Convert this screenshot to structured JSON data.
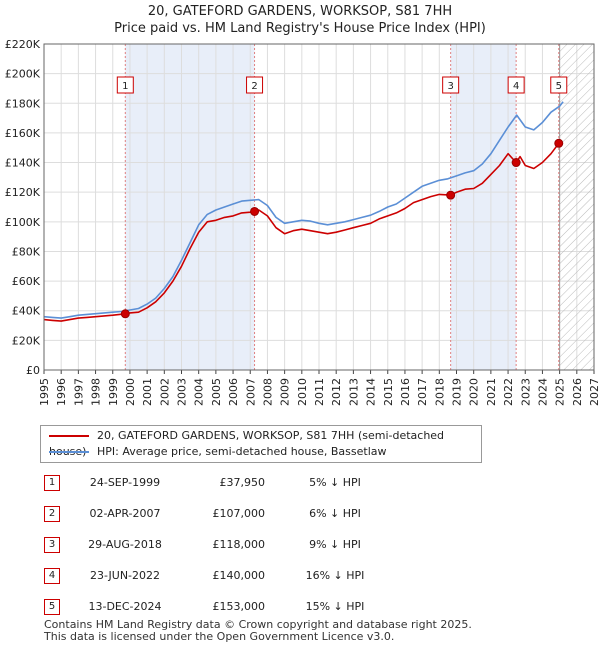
{
  "title": {
    "line1": "20, GATEFORD GARDENS, WORKSOP, S81 7HH",
    "line2": "Price paid vs. HM Land Registry's House Price Index (HPI)"
  },
  "chart_data": {
    "type": "line",
    "title": "20, GATEFORD GARDENS, WORKSOP, S81 7HH - Price paid vs. HM Land Registry's House Price Index (HPI)",
    "xlabel": "",
    "ylabel": "",
    "xlim": [
      1995,
      2027
    ],
    "ylim": [
      0,
      220000
    ],
    "x_ticks": [
      "1995",
      "1996",
      "1997",
      "1998",
      "1999",
      "2000",
      "2001",
      "2002",
      "2003",
      "2004",
      "2005",
      "2006",
      "2007",
      "2008",
      "2009",
      "2010",
      "2011",
      "2012",
      "2013",
      "2014",
      "2015",
      "2016",
      "2017",
      "2018",
      "2019",
      "2020",
      "2021",
      "2022",
      "2023",
      "2024",
      "2025",
      "2026",
      "2027"
    ],
    "y_ticks": [
      {
        "value": 0,
        "label": "£0"
      },
      {
        "value": 20000,
        "label": "£20K"
      },
      {
        "value": 40000,
        "label": "£40K"
      },
      {
        "value": 60000,
        "label": "£60K"
      },
      {
        "value": 80000,
        "label": "£80K"
      },
      {
        "value": 100000,
        "label": "£100K"
      },
      {
        "value": 120000,
        "label": "£120K"
      },
      {
        "value": 140000,
        "label": "£140K"
      },
      {
        "value": 160000,
        "label": "£160K"
      },
      {
        "value": 180000,
        "label": "£180K"
      },
      {
        "value": 200000,
        "label": "£200K"
      },
      {
        "value": 220000,
        "label": "£220K"
      }
    ],
    "grid": true,
    "forecast_from": 2025.0,
    "series": [
      {
        "name": "20, GATEFORD GARDENS, WORKSOP, S81 7HH (semi-detached house)",
        "color": "#cc0000",
        "x": [
          1995.0,
          1995.5,
          1996.0,
          1996.5,
          1997.0,
          1997.5,
          1998.0,
          1998.5,
          1999.0,
          1999.73,
          2000.0,
          2000.5,
          2001.0,
          2001.5,
          2002.0,
          2002.5,
          2003.0,
          2003.5,
          2004.0,
          2004.5,
          2005.0,
          2005.5,
          2006.0,
          2006.5,
          2007.0,
          2007.25,
          2007.5,
          2008.0,
          2008.5,
          2009.0,
          2009.5,
          2010.0,
          2010.5,
          2011.0,
          2011.5,
          2012.0,
          2012.5,
          2013.0,
          2013.5,
          2014.0,
          2014.5,
          2015.0,
          2015.5,
          2016.0,
          2016.5,
          2017.0,
          2017.5,
          2018.0,
          2018.66,
          2019.0,
          2019.5,
          2020.0,
          2020.5,
          2021.0,
          2021.5,
          2022.0,
          2022.47,
          2022.7,
          2023.0,
          2023.5,
          2024.0,
          2024.5,
          2024.95,
          2025.1
        ],
        "values": [
          34000,
          33500,
          33000,
          34000,
          35000,
          35500,
          36000,
          36500,
          37000,
          37950,
          38500,
          39000,
          42000,
          46000,
          52000,
          60000,
          70000,
          82000,
          93000,
          100000,
          101000,
          103000,
          104000,
          106000,
          106500,
          107000,
          108000,
          104000,
          96000,
          92000,
          94000,
          95000,
          94000,
          93000,
          92000,
          93000,
          94500,
          96000,
          97500,
          99000,
          102000,
          104000,
          106000,
          109000,
          113000,
          115000,
          117000,
          118500,
          118000,
          120000,
          122000,
          122500,
          126000,
          132000,
          138000,
          146000,
          140000,
          144000,
          138000,
          136000,
          140000,
          146000,
          153000,
          154000
        ]
      },
      {
        "name": "HPI: Average price, semi-detached house, Bassetlaw",
        "color": "#5b8fd6",
        "x": [
          1995.0,
          1995.5,
          1996.0,
          1996.5,
          1997.0,
          1997.5,
          1998.0,
          1998.5,
          1999.0,
          1999.5,
          2000.0,
          2000.5,
          2001.0,
          2001.5,
          2002.0,
          2002.5,
          2003.0,
          2003.5,
          2004.0,
          2004.5,
          2005.0,
          2005.5,
          2006.0,
          2006.5,
          2007.0,
          2007.5,
          2008.0,
          2008.5,
          2009.0,
          2009.5,
          2010.0,
          2010.5,
          2011.0,
          2011.5,
          2012.0,
          2012.5,
          2013.0,
          2013.5,
          2014.0,
          2014.5,
          2015.0,
          2015.5,
          2016.0,
          2016.5,
          2017.0,
          2017.5,
          2018.0,
          2018.5,
          2019.0,
          2019.5,
          2020.0,
          2020.5,
          2021.0,
          2021.5,
          2022.0,
          2022.5,
          2023.0,
          2023.5,
          2024.0,
          2024.5,
          2025.0,
          2025.2
        ],
        "values": [
          36000,
          35500,
          35000,
          36000,
          37000,
          37500,
          38000,
          38500,
          39000,
          39500,
          40500,
          41500,
          44500,
          48500,
          55000,
          63000,
          74000,
          86000,
          98000,
          105000,
          108000,
          110000,
          112000,
          114000,
          114500,
          115000,
          111000,
          103000,
          99000,
          100000,
          101000,
          100500,
          99000,
          98000,
          99000,
          100000,
          101500,
          103000,
          104500,
          107000,
          110000,
          112000,
          116000,
          120000,
          124000,
          126000,
          128000,
          129000,
          131000,
          133000,
          134500,
          139000,
          146000,
          155000,
          164000,
          172000,
          164000,
          162000,
          167000,
          174000,
          178000,
          181000
        ]
      }
    ],
    "sales": [
      {
        "id": "1",
        "x": 1999.73,
        "price": 37950
      },
      {
        "id": "2",
        "x": 2007.25,
        "price": 107000
      },
      {
        "id": "3",
        "x": 2018.66,
        "price": 118000
      },
      {
        "id": "4",
        "x": 2022.47,
        "price": 140000
      },
      {
        "id": "5",
        "x": 2024.95,
        "price": 153000
      }
    ]
  },
  "legend": {
    "property_label": "20, GATEFORD GARDENS, WORKSOP, S81 7HH (semi-detached house)",
    "hpi_label": "HPI: Average price, semi-detached house, Bassetlaw"
  },
  "sales_table": [
    {
      "num": "1",
      "date": "24-SEP-1999",
      "price": "£37,950",
      "hpi": "5% ↓ HPI"
    },
    {
      "num": "2",
      "date": "02-APR-2007",
      "price": "£107,000",
      "hpi": "6% ↓ HPI"
    },
    {
      "num": "3",
      "date": "29-AUG-2018",
      "price": "£118,000",
      "hpi": "9% ↓ HPI"
    },
    {
      "num": "4",
      "date": "23-JUN-2022",
      "price": "£140,000",
      "hpi": "16% ↓ HPI"
    },
    {
      "num": "5",
      "date": "13-DEC-2024",
      "price": "£153,000",
      "hpi": "15% ↓ HPI"
    }
  ],
  "footer": {
    "line1": "Contains HM Land Registry data © Crown copyright and database right 2025.",
    "line2": "This data is licensed under the Open Government Licence v3.0."
  }
}
